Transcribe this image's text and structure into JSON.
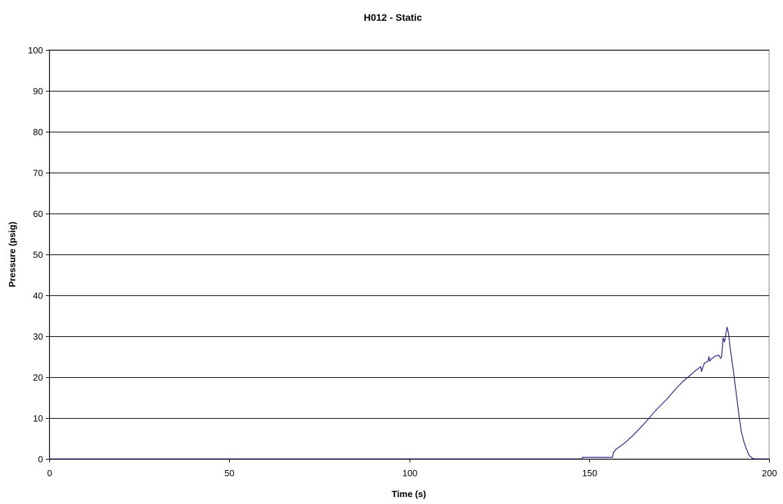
{
  "chart_data": {
    "type": "line",
    "title": "H012 - Static",
    "xlabel": "Time (s)",
    "ylabel": "Pressure (psig)",
    "xlim": [
      0,
      200
    ],
    "ylim": [
      0,
      100
    ],
    "x_ticks": [
      0,
      50,
      100,
      150,
      200
    ],
    "y_ticks": [
      0,
      10,
      20,
      30,
      40,
      50,
      60,
      70,
      80,
      90,
      100
    ],
    "x_tick_labels": [
      "0",
      "50",
      "100",
      "150",
      "200"
    ],
    "y_tick_labels": [
      "0",
      "10",
      "20",
      "30",
      "40",
      "50",
      "60",
      "70",
      "80",
      "90",
      "100"
    ],
    "grid": "horizontal",
    "legend": "none",
    "series": [
      {
        "color": "#1f1f8f",
        "x": [
          0,
          20,
          40,
          60,
          80,
          100,
          120,
          140,
          148,
          148.2,
          152,
          156.5,
          156.7,
          157.5,
          158.5,
          160,
          162,
          164,
          166,
          168,
          170,
          172,
          174,
          176,
          178,
          180,
          181,
          181.2,
          182,
          183,
          183.3,
          183.5,
          184,
          185,
          186,
          186.5,
          186.8,
          187.2,
          187.6,
          188,
          188.3,
          188.7,
          189.2,
          190,
          190.8,
          191.5,
          192.2,
          193,
          193.8,
          194.5,
          195.5,
          196.5,
          200
        ],
        "y": [
          0,
          0,
          0,
          0,
          0,
          0,
          0,
          0,
          0,
          0.4,
          0.4,
          0.4,
          1.5,
          2.4,
          3.0,
          4.0,
          5.6,
          7.4,
          9.3,
          11.4,
          13.2,
          15.0,
          17.1,
          18.9,
          20.4,
          21.9,
          22.6,
          21.4,
          23.4,
          23.9,
          25.0,
          23.9,
          24.5,
          25.1,
          25.4,
          24.6,
          25.0,
          29.6,
          28.6,
          30.6,
          32.2,
          30.8,
          27.0,
          22.0,
          16.5,
          11.5,
          7.0,
          4.2,
          2.2,
          0.8,
          0.1,
          0,
          0
        ]
      }
    ]
  }
}
